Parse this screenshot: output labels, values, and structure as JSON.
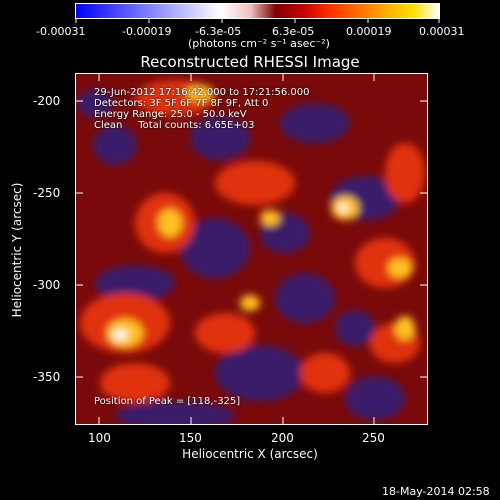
{
  "colorbar": {
    "ticks": [
      "-0.00031",
      "-0.00019",
      "-6.3e-05",
      "6.3e-05",
      "0.00019",
      "0.00031"
    ],
    "units_label": "(photons cm⁻² s⁻¹ asec⁻²)"
  },
  "plot": {
    "title": "Reconstructed RHESSI Image",
    "xlabel": "Heliocentric X (arcsec)",
    "ylabel": "Heliocentric Y (arcsec)",
    "x_ticks": [
      "100",
      "150",
      "200",
      "250"
    ],
    "y_ticks": [
      "-200",
      "-250",
      "-300",
      "-350"
    ]
  },
  "annotations": {
    "time_range": "29-Jun-2012 17:16:42.000 to 17:21:56.000",
    "detectors": "Detectors: 3F 5F 6F 7F 8F 9F, Att 0",
    "energy_range": "Energy Range: 25.0 - 50.0 keV",
    "method_counts": "Clean     Total counts: 6.65E+03",
    "peak": "Position of Peak = [118,-325]"
  },
  "footer": {
    "timestamp": "18-May-2014 02:58"
  },
  "colors": {
    "background": "#000000",
    "text": "#ffffff"
  }
}
